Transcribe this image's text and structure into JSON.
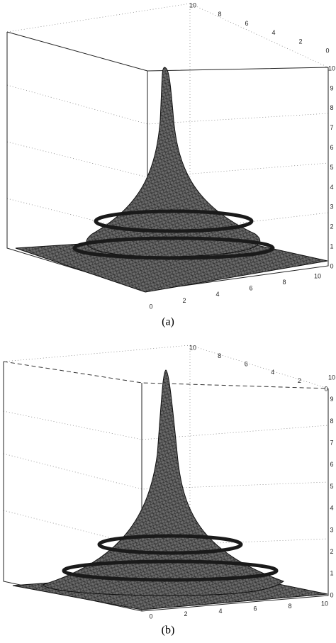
{
  "panels": [
    {
      "caption": "(a)",
      "front_ticks": [
        0,
        2,
        4,
        6,
        8,
        10
      ],
      "vertical_ticks": [
        0,
        1,
        2,
        3,
        4,
        5,
        6,
        7,
        8,
        9,
        10
      ],
      "back_ticks": [
        10,
        8,
        6,
        4,
        2,
        0
      ]
    },
    {
      "caption": "(b)",
      "front_ticks": [
        0,
        2,
        4,
        6,
        8,
        10
      ],
      "vertical_ticks": [
        0,
        1,
        2,
        3,
        4,
        5,
        6,
        7,
        8,
        9,
        10
      ],
      "back_ticks": [
        10,
        8,
        6,
        4,
        2,
        0
      ]
    }
  ]
}
